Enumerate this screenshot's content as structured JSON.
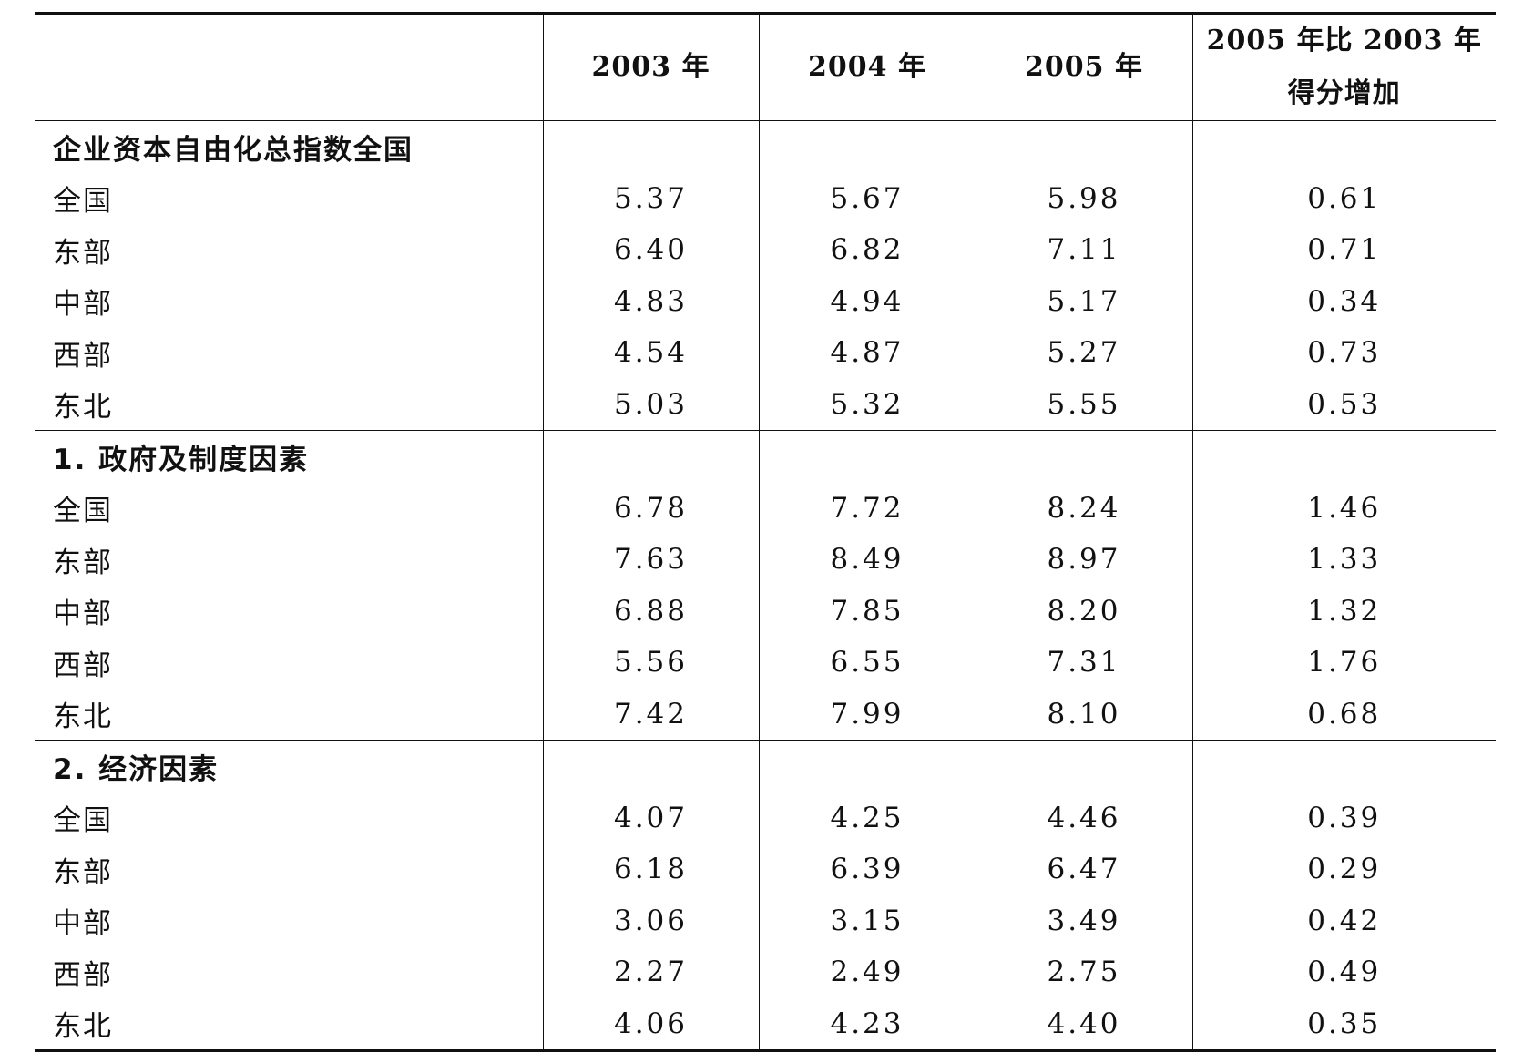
{
  "table": {
    "headers": [
      "",
      "2003 年",
      "2004 年",
      "2005 年",
      "2005 年比 2003 年\n得分增加"
    ],
    "header_increase": {
      "line1": "2005 年比 2003 年",
      "line2": "得分增加"
    },
    "sections": [
      {
        "title": "企业资本自由化总指数全国",
        "rows": [
          {
            "region": "全国",
            "y2003": "5.37",
            "y2004": "5.67",
            "y2005": "5.98",
            "increase": "0.61"
          },
          {
            "region": "东部",
            "y2003": "6.40",
            "y2004": "6.82",
            "y2005": "7.11",
            "increase": "0.71"
          },
          {
            "region": "中部",
            "y2003": "4.83",
            "y2004": "4.94",
            "y2005": "5.17",
            "increase": "0.34"
          },
          {
            "region": "西部",
            "y2003": "4.54",
            "y2004": "4.87",
            "y2005": "5.27",
            "increase": "0.73"
          },
          {
            "region": "东北",
            "y2003": "5.03",
            "y2004": "5.32",
            "y2005": "5.55",
            "increase": "0.53"
          }
        ]
      },
      {
        "title": "1. 政府及制度因素",
        "rows": [
          {
            "region": "全国",
            "y2003": "6.78",
            "y2004": "7.72",
            "y2005": "8.24",
            "increase": "1.46"
          },
          {
            "region": "东部",
            "y2003": "7.63",
            "y2004": "8.49",
            "y2005": "8.97",
            "increase": "1.33"
          },
          {
            "region": "中部",
            "y2003": "6.88",
            "y2004": "7.85",
            "y2005": "8.20",
            "increase": "1.32"
          },
          {
            "region": "西部",
            "y2003": "5.56",
            "y2004": "6.55",
            "y2005": "7.31",
            "increase": "1.76"
          },
          {
            "region": "东北",
            "y2003": "7.42",
            "y2004": "7.99",
            "y2005": "8.10",
            "increase": "0.68"
          }
        ]
      },
      {
        "title": "2. 经济因素",
        "rows": [
          {
            "region": "全国",
            "y2003": "4.07",
            "y2004": "4.25",
            "y2005": "4.46",
            "increase": "0.39"
          },
          {
            "region": "东部",
            "y2003": "6.18",
            "y2004": "6.39",
            "y2005": "6.47",
            "increase": "0.29"
          },
          {
            "region": "中部",
            "y2003": "3.06",
            "y2004": "3.15",
            "y2005": "3.49",
            "increase": "0.42"
          },
          {
            "region": "西部",
            "y2003": "2.27",
            "y2004": "2.49",
            "y2005": "2.75",
            "increase": "0.49"
          },
          {
            "region": "东北",
            "y2003": "4.06",
            "y2004": "4.23",
            "y2005": "4.40",
            "increase": "0.35"
          }
        ]
      }
    ]
  }
}
